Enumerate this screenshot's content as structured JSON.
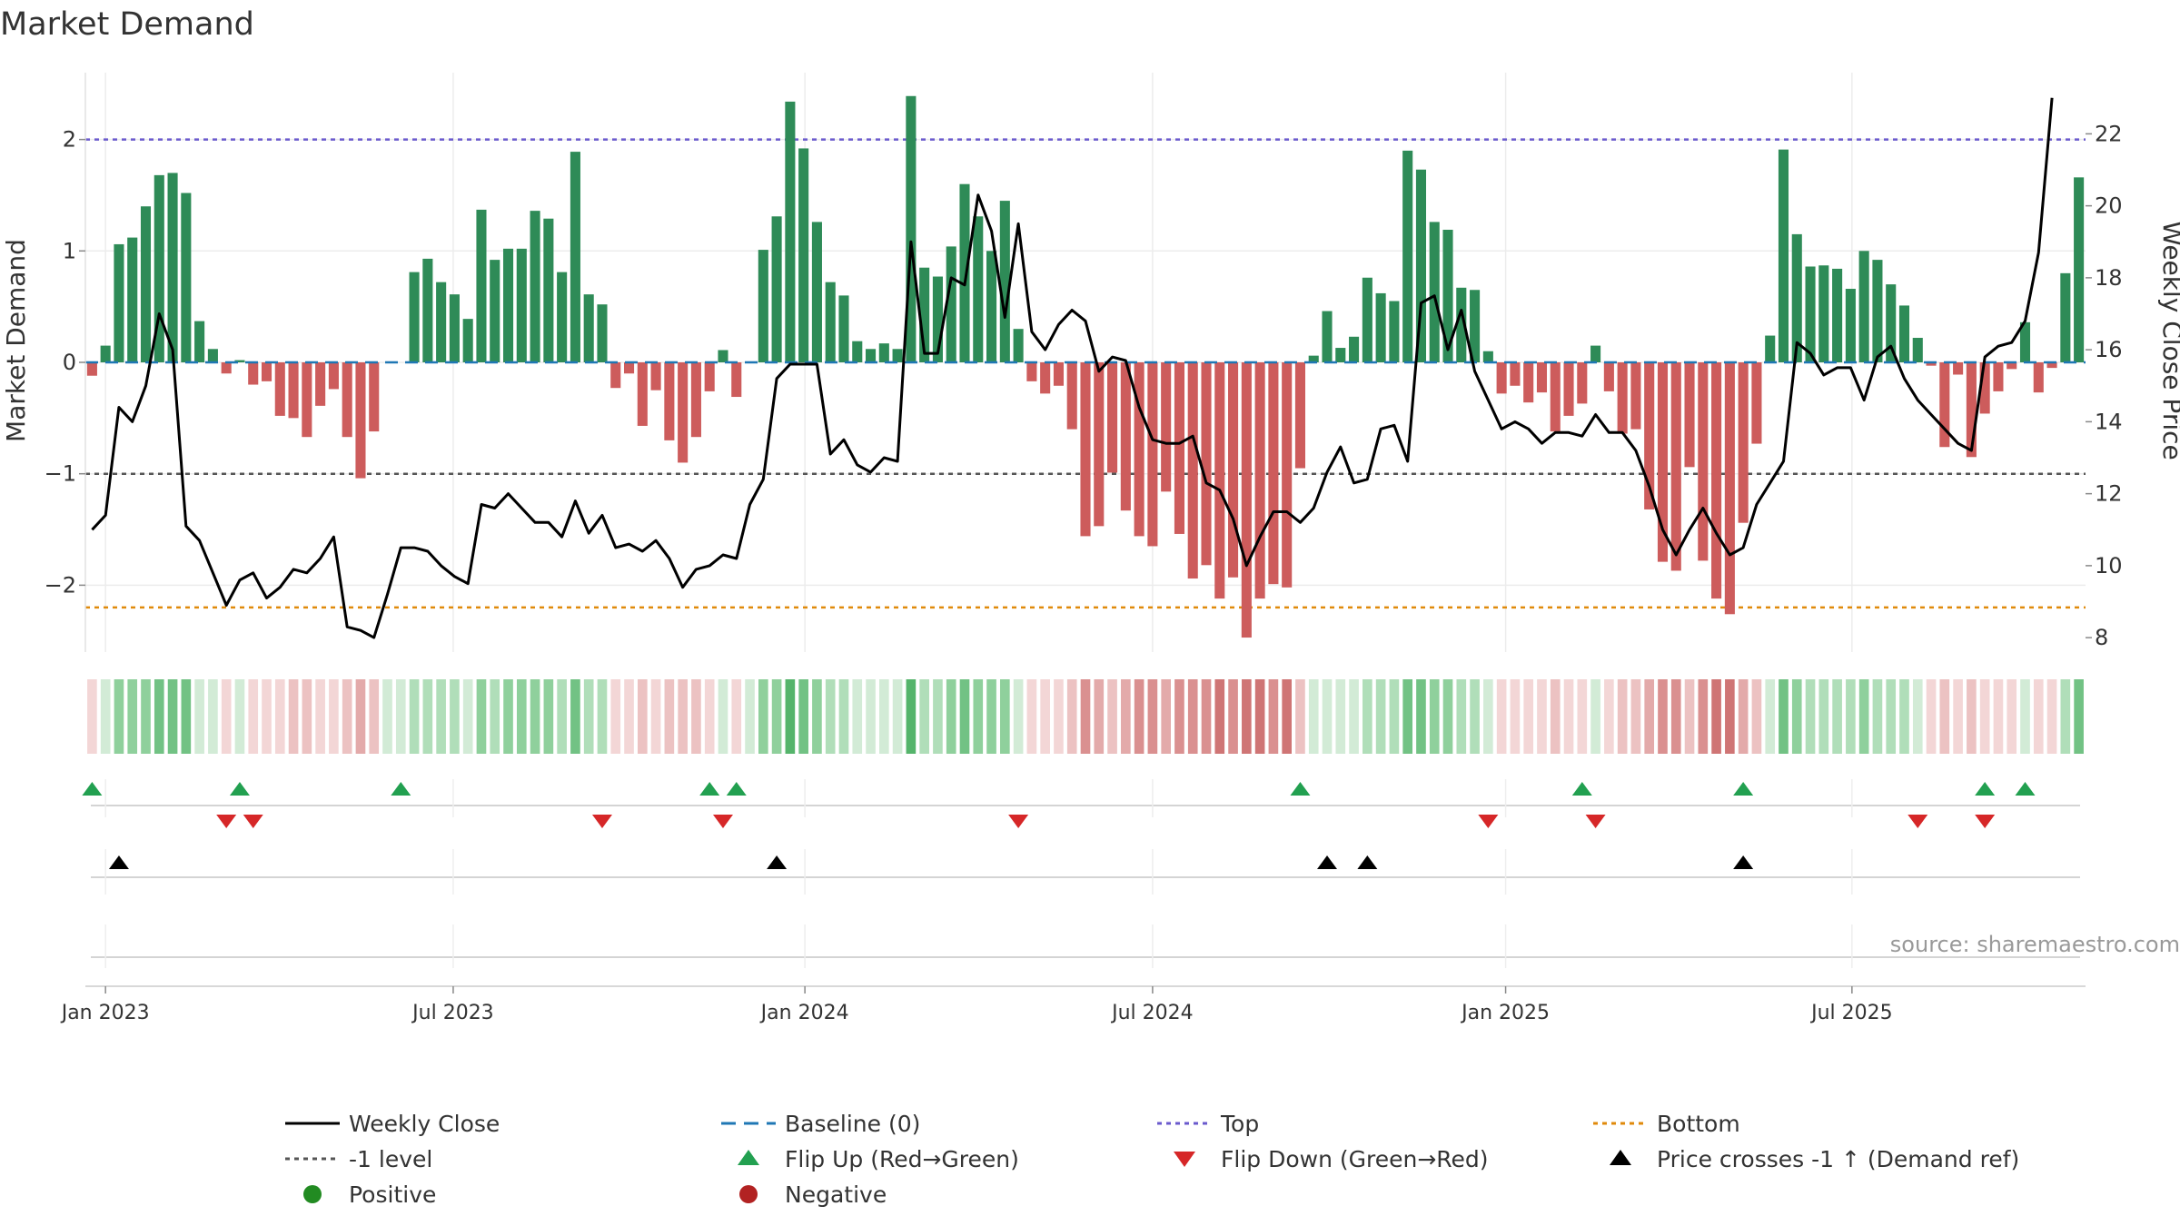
{
  "chart_data": {
    "type": "bar",
    "title": "Market Demand",
    "ylabel": "Market Demand",
    "y2label": "Weekly Close Price",
    "ylim": [
      -2.6,
      2.6
    ],
    "y2lim": [
      7.6,
      23.7
    ],
    "yticks": [
      -2,
      -1,
      0,
      1,
      2
    ],
    "ytick_labels": [
      "−2",
      "−1",
      "0",
      "1",
      "2"
    ],
    "y2ticks": [
      8,
      10,
      12,
      14,
      16,
      18,
      20,
      22
    ],
    "y2tick_labels": [
      "8",
      "10",
      "12",
      "14",
      "16",
      "18",
      "20",
      "22"
    ],
    "x_start": "2022-12-26",
    "x_step_days": 7,
    "xticks": [
      {
        "label": "Jan 2023",
        "week": 1
      },
      {
        "label": "Jul 2023",
        "week": 26.9
      },
      {
        "label": "Jan 2024",
        "week": 53.1
      },
      {
        "label": "Jul 2024",
        "week": 79
      },
      {
        "label": "Jan 2025",
        "week": 105.3
      },
      {
        "label": "Jul 2025",
        "week": 131.1
      }
    ],
    "reference_lines": {
      "top": 2.0,
      "bottom": -2.2,
      "minus_one": -1.0,
      "baseline": 0
    },
    "demand": [
      -0.12,
      0.15,
      1.06,
      1.12,
      1.4,
      1.68,
      1.7,
      1.52,
      0.37,
      0.12,
      -0.1,
      0.02,
      -0.2,
      -0.17,
      -0.48,
      -0.5,
      -0.67,
      -0.39,
      -0.24,
      -0.67,
      -1.04,
      -0.62,
      0,
      0,
      0.81,
      0.93,
      0.72,
      0.61,
      0.39,
      1.37,
      0.92,
      1.02,
      1.02,
      1.36,
      1.29,
      0.81,
      1.89,
      0.61,
      0.52,
      -0.23,
      -0.1,
      -0.57,
      -0.25,
      -0.7,
      -0.9,
      -0.67,
      -0.26,
      0.11,
      -0.31,
      0,
      1.01,
      1.31,
      2.34,
      1.92,
      1.26,
      0.72,
      0.6,
      0.19,
      0.12,
      0.17,
      0.12,
      2.39,
      0.85,
      0.77,
      1.04,
      1.6,
      1.31,
      1.0,
      1.45,
      0.3,
      -0.17,
      -0.28,
      -0.21,
      -0.6,
      -1.56,
      -1.47,
      -0.99,
      -1.33,
      -1.56,
      -1.65,
      -1.16,
      -1.54,
      -1.94,
      -1.82,
      -2.12,
      -1.93,
      -2.47,
      -2.12,
      -1.99,
      -2.02,
      -0.95,
      0.06,
      0.46,
      0.13,
      0.23,
      0.76,
      0.62,
      0.55,
      1.9,
      1.73,
      1.26,
      1.19,
      0.67,
      0.65,
      0.1,
      -0.28,
      -0.21,
      -0.36,
      -0.27,
      -0.62,
      -0.48,
      -0.37,
      0.15,
      -0.26,
      -0.64,
      -0.6,
      -1.32,
      -1.79,
      -1.87,
      -0.94,
      -1.78,
      -2.12,
      -2.26,
      -1.44,
      -0.73,
      0.24,
      1.91,
      1.15,
      0.86,
      0.87,
      0.84,
      0.66,
      1.0,
      0.92,
      0.7,
      0.51,
      0.22,
      -0.03,
      -0.76,
      -0.11,
      -0.85,
      -0.46,
      -0.26,
      -0.06,
      0.36,
      -0.27,
      -0.05,
      0.8,
      1.66
    ],
    "close": [
      11.0,
      11.4,
      14.4,
      14.0,
      15.0,
      17.0,
      16.0,
      11.1,
      10.7,
      9.8,
      8.9,
      9.6,
      9.8,
      9.1,
      9.4,
      9.9,
      9.8,
      10.2,
      10.8,
      8.3,
      8.2,
      8.0,
      9.2,
      10.5,
      10.5,
      10.4,
      10.0,
      9.7,
      9.5,
      11.7,
      11.6,
      12.0,
      11.6,
      11.2,
      11.2,
      10.8,
      11.8,
      10.9,
      11.4,
      10.5,
      10.6,
      10.4,
      10.7,
      10.2,
      9.4,
      9.9,
      10.0,
      10.3,
      10.2,
      11.7,
      12.4,
      15.2,
      15.6,
      15.6,
      15.6,
      13.1,
      13.5,
      12.8,
      12.6,
      13.0,
      12.9,
      19.0,
      15.9,
      15.9,
      18.0,
      17.8,
      20.3,
      19.3,
      16.9,
      19.5,
      16.5,
      16.0,
      16.7,
      17.1,
      16.8,
      15.4,
      15.8,
      15.7,
      14.4,
      13.5,
      13.4,
      13.4,
      13.6,
      12.3,
      12.1,
      11.3,
      10.0,
      10.8,
      11.5,
      11.5,
      11.2,
      11.6,
      12.6,
      13.3,
      12.3,
      12.4,
      13.8,
      13.9,
      12.9,
      17.3,
      17.5,
      16.0,
      17.1,
      15.4,
      14.6,
      13.8,
      14.0,
      13.8,
      13.4,
      13.7,
      13.7,
      13.6,
      14.2,
      13.7,
      13.7,
      13.2,
      12.2,
      11.0,
      10.3,
      11.0,
      11.6,
      10.9,
      10.3,
      10.5,
      11.7,
      12.3,
      12.9,
      16.2,
      15.9,
      15.3,
      15.5,
      15.5,
      14.6,
      15.8,
      16.1,
      15.2,
      14.6,
      14.2,
      13.8,
      13.4,
      13.2,
      15.8,
      16.1,
      16.2,
      16.8,
      18.7,
      23.0
    ],
    "flip_up_weeks": [
      0,
      11,
      23,
      46,
      48,
      90,
      111,
      123,
      141,
      144
    ],
    "flip_down_weeks": [
      10,
      12,
      38,
      47,
      69,
      104,
      112,
      136,
      141
    ],
    "price_cross_weeks": [
      2,
      51,
      92,
      95,
      123
    ],
    "legend": [
      {
        "key": "weekly-close",
        "label": "Weekly Close"
      },
      {
        "key": "baseline",
        "label": "Baseline (0)"
      },
      {
        "key": "top",
        "label": "Top"
      },
      {
        "key": "bottom",
        "label": "Bottom"
      },
      {
        "key": "minus-one",
        "label": "-1 level"
      },
      {
        "key": "flip-up",
        "label": "Flip Up (Red→Green)"
      },
      {
        "key": "flip-down",
        "label": "Flip Down (Green→Red)"
      },
      {
        "key": "price-cross",
        "label": "Price crosses -1 ↑ (Demand ref)"
      },
      {
        "key": "positive",
        "label": "Positive"
      },
      {
        "key": "negative",
        "label": "Negative"
      }
    ],
    "legend_position": "bottom",
    "source": "source: sharemaestro.com",
    "colors": {
      "positive_bar": "#2e8b57",
      "negative_bar": "#cd5c5c",
      "close_line": "#000000",
      "baseline": "#1f77b4",
      "top": "#6a5acd",
      "bottom": "#e08a0b",
      "minus_one": "#555555",
      "flip_up": "#22a050",
      "flip_down": "#d62728",
      "price_cross": "#000000",
      "positive_dot": "#228b22",
      "negative_dot": "#b22222"
    }
  }
}
